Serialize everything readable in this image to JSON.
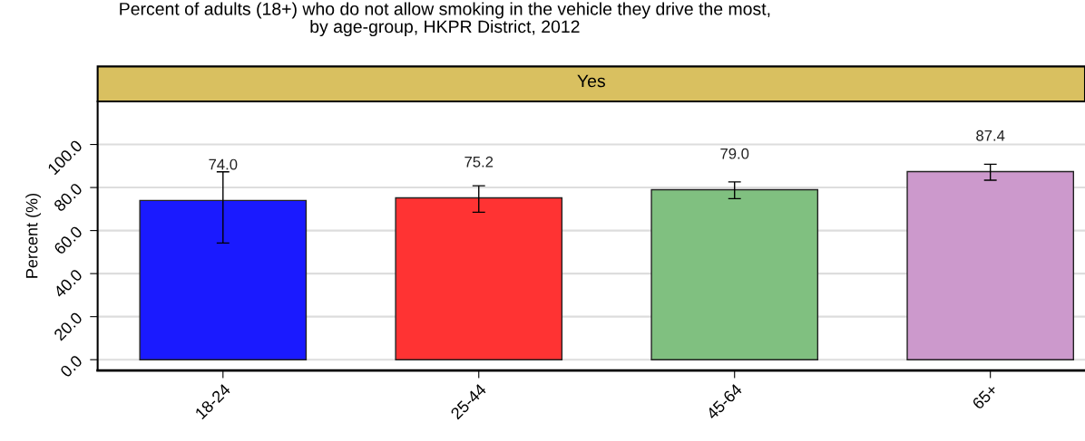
{
  "chart_data": {
    "type": "bar",
    "title": "Percent of adults (18+) who do not allow smoking in the vehicle they drive the most,\nby age-group, HKPR District, 2012",
    "subtitle": "Yes",
    "ylabel": "Percent (%)",
    "categories": [
      "18-24",
      "25-44",
      "45-64",
      "65+"
    ],
    "values": [
      74.0,
      75.2,
      79.0,
      87.4
    ],
    "colors": [
      "#1a1aff",
      "#ff3333",
      "#80c080",
      "#cc99cc"
    ],
    "errors": [
      [
        54.2,
        87.3
      ],
      [
        68.5,
        80.8
      ],
      [
        74.8,
        82.6
      ],
      [
        83.4,
        90.8
      ]
    ],
    "value_labels": [
      "74.0",
      "75.2",
      "79.0",
      "87.4"
    ],
    "ylim": [
      -5,
      120
    ],
    "yticks": [
      {
        "value": 0,
        "label": "0.0"
      },
      {
        "value": 20,
        "label": "20.0"
      },
      {
        "value": 40,
        "label": "40.0"
      },
      {
        "value": 60,
        "label": "60.0"
      },
      {
        "value": 80,
        "label": "80.0"
      },
      {
        "value": 100,
        "label": "100.0"
      }
    ],
    "grid": "y",
    "legend": false
  }
}
